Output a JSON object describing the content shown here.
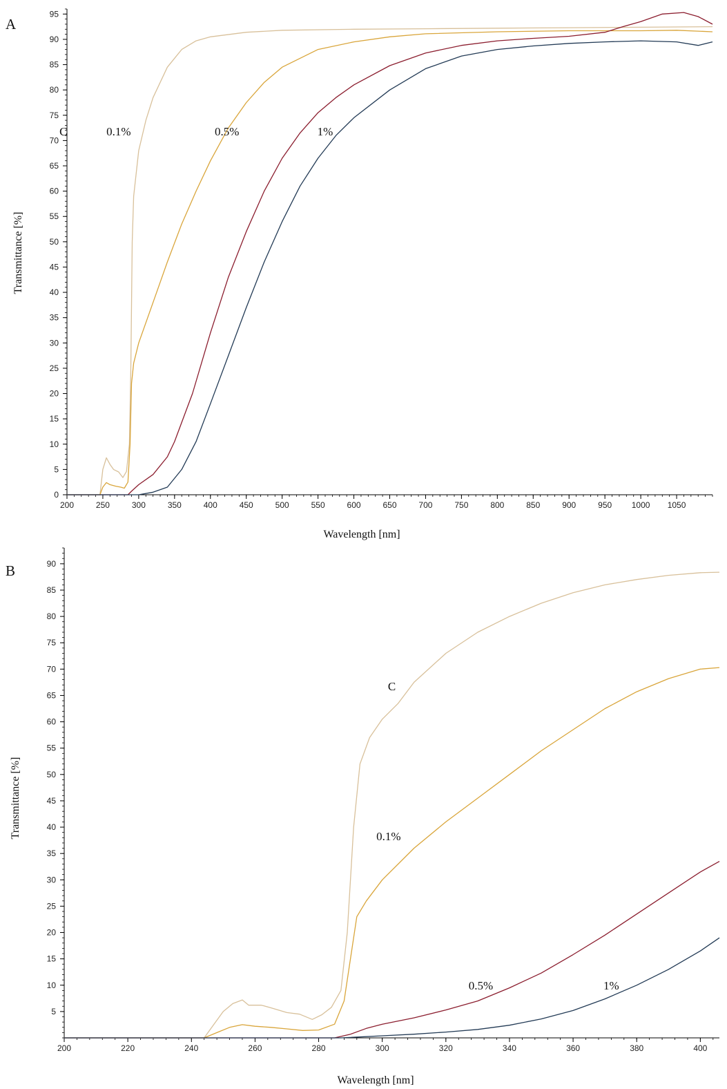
{
  "chart_data": [
    {
      "type": "line",
      "panel_label": "A",
      "xlabel": "Wavelength [nm]",
      "ylabel": "Transmittance [%]",
      "xlim": [
        200,
        1100
      ],
      "ylim": [
        0,
        96
      ],
      "xticks": [
        200,
        250,
        300,
        350,
        400,
        450,
        500,
        550,
        600,
        650,
        700,
        750,
        800,
        850,
        900,
        950,
        1000,
        1050
      ],
      "yticks": [
        0,
        5,
        10,
        15,
        20,
        25,
        30,
        35,
        40,
        45,
        50,
        55,
        60,
        65,
        70,
        75,
        80,
        85,
        90,
        95
      ],
      "grid": false,
      "series": [
        {
          "name": "C",
          "color": "#d8c09a",
          "label_at": {
            "x": 195,
            "y": 71
          },
          "points": [
            [
              200,
              0
            ],
            [
              240,
              0
            ],
            [
              246,
              0
            ],
            [
              250,
              5
            ],
            [
              255,
              7.3
            ],
            [
              260,
              6
            ],
            [
              265,
              5
            ],
            [
              272,
              4.5
            ],
            [
              278,
              3.4
            ],
            [
              283,
              4.6
            ],
            [
              287,
              10
            ],
            [
              289,
              25
            ],
            [
              291,
              50
            ],
            [
              293,
              59
            ],
            [
              300,
              68
            ],
            [
              310,
              74
            ],
            [
              320,
              78.5
            ],
            [
              340,
              84.5
            ],
            [
              360,
              88
            ],
            [
              380,
              89.7
            ],
            [
              400,
              90.5
            ],
            [
              450,
              91.4
            ],
            [
              500,
              91.8
            ],
            [
              600,
              92.0
            ],
            [
              700,
              92.1
            ],
            [
              800,
              92.2
            ],
            [
              900,
              92.3
            ],
            [
              1000,
              92.4
            ],
            [
              1100,
              92.5
            ]
          ]
        },
        {
          "name": "0.1%",
          "color": "#d9a53a",
          "label_at": {
            "x": 272,
            "y": 71
          },
          "points": [
            [
              200,
              0
            ],
            [
              240,
              0
            ],
            [
              246,
              0
            ],
            [
              250,
              1.5
            ],
            [
              255,
              2.4
            ],
            [
              260,
              2
            ],
            [
              268,
              1.7
            ],
            [
              275,
              1.5
            ],
            [
              280,
              1.3
            ],
            [
              285,
              2.5
            ],
            [
              288,
              10
            ],
            [
              290,
              22
            ],
            [
              293,
              26
            ],
            [
              300,
              30
            ],
            [
              320,
              38
            ],
            [
              340,
              46
            ],
            [
              360,
              53.5
            ],
            [
              380,
              60
            ],
            [
              400,
              66
            ],
            [
              425,
              72.5
            ],
            [
              450,
              77.5
            ],
            [
              475,
              81.5
            ],
            [
              500,
              84.5
            ],
            [
              550,
              88
            ],
            [
              600,
              89.5
            ],
            [
              650,
              90.5
            ],
            [
              700,
              91.1
            ],
            [
              800,
              91.5
            ],
            [
              900,
              91.7
            ],
            [
              1000,
              91.7
            ],
            [
              1050,
              91.8
            ],
            [
              1100,
              91.5
            ]
          ]
        },
        {
          "name": "0.5%",
          "color": "#8b1d2e",
          "label_at": {
            "x": 423,
            "y": 71
          },
          "points": [
            [
              200,
              0
            ],
            [
              240,
              0
            ],
            [
              285,
              0
            ],
            [
              290,
              0.7
            ],
            [
              300,
              2
            ],
            [
              320,
              4
            ],
            [
              340,
              7.5
            ],
            [
              350,
              10.5
            ],
            [
              375,
              20
            ],
            [
              400,
              32
            ],
            [
              425,
              43
            ],
            [
              450,
              52
            ],
            [
              475,
              60
            ],
            [
              500,
              66.5
            ],
            [
              525,
              71.5
            ],
            [
              550,
              75.5
            ],
            [
              575,
              78.5
            ],
            [
              600,
              81
            ],
            [
              650,
              84.8
            ],
            [
              700,
              87.3
            ],
            [
              750,
              88.8
            ],
            [
              800,
              89.7
            ],
            [
              850,
              90.2
            ],
            [
              900,
              90.6
            ],
            [
              950,
              91.4
            ],
            [
              975,
              92.5
            ],
            [
              1000,
              93.5
            ],
            [
              1030,
              95
            ],
            [
              1060,
              95.3
            ],
            [
              1080,
              94.5
            ],
            [
              1100,
              93
            ]
          ]
        },
        {
          "name": "1%",
          "color": "#223a55",
          "label_at": {
            "x": 560,
            "y": 71
          },
          "points": [
            [
              200,
              0
            ],
            [
              240,
              0
            ],
            [
              300,
              0
            ],
            [
              320,
              0.5
            ],
            [
              340,
              1.5
            ],
            [
              360,
              5
            ],
            [
              380,
              10.5
            ],
            [
              400,
              18
            ],
            [
              425,
              27.5
            ],
            [
              450,
              37
            ],
            [
              475,
              46
            ],
            [
              500,
              54
            ],
            [
              525,
              61
            ],
            [
              550,
              66.5
            ],
            [
              575,
              71
            ],
            [
              600,
              74.5
            ],
            [
              650,
              80
            ],
            [
              700,
              84.2
            ],
            [
              750,
              86.7
            ],
            [
              800,
              88
            ],
            [
              850,
              88.7
            ],
            [
              900,
              89.2
            ],
            [
              950,
              89.5
            ],
            [
              1000,
              89.7
            ],
            [
              1050,
              89.5
            ],
            [
              1080,
              88.8
            ],
            [
              1100,
              89.5
            ]
          ]
        }
      ]
    },
    {
      "type": "line",
      "panel_label": "B",
      "xlabel": "Wavelength [nm]",
      "ylabel": "Transmittance [%]",
      "xlim": [
        200,
        406
      ],
      "ylim": [
        0,
        93
      ],
      "xticks": [
        200,
        220,
        240,
        260,
        280,
        300,
        320,
        340,
        360,
        380,
        400
      ],
      "yticks": [
        5,
        10,
        15,
        20,
        25,
        30,
        35,
        40,
        45,
        50,
        55,
        60,
        65,
        70,
        75,
        80,
        85,
        90
      ],
      "grid": false,
      "series": [
        {
          "name": "C",
          "color": "#d8c09a",
          "label_at": {
            "x": 303,
            "y": 66
          },
          "points": [
            [
              200,
              0
            ],
            [
              244,
              0
            ],
            [
              247,
              2.5
            ],
            [
              250,
              5
            ],
            [
              253,
              6.5
            ],
            [
              256,
              7.2
            ],
            [
              258,
              6.2
            ],
            [
              262,
              6.2
            ],
            [
              265,
              5.7
            ],
            [
              270,
              4.8
            ],
            [
              274,
              4.5
            ],
            [
              278,
              3.5
            ],
            [
              281,
              4.4
            ],
            [
              284,
              5.8
            ],
            [
              287,
              9
            ],
            [
              289,
              20
            ],
            [
              291,
              40
            ],
            [
              293,
              52
            ],
            [
              296,
              57
            ],
            [
              300,
              60.5
            ],
            [
              305,
              63.5
            ],
            [
              310,
              67.5
            ],
            [
              320,
              73
            ],
            [
              330,
              77
            ],
            [
              340,
              80
            ],
            [
              350,
              82.5
            ],
            [
              360,
              84.5
            ],
            [
              370,
              86
            ],
            [
              380,
              87
            ],
            [
              390,
              87.8
            ],
            [
              400,
              88.3
            ],
            [
              406,
              88.4
            ]
          ]
        },
        {
          "name": "0.1%",
          "color": "#d9a53a",
          "label_at": {
            "x": 302,
            "y": 37.5
          },
          "points": [
            [
              200,
              0
            ],
            [
              244,
              0
            ],
            [
              248,
              1
            ],
            [
              252,
              2
            ],
            [
              256,
              2.5
            ],
            [
              260,
              2.2
            ],
            [
              265,
              2
            ],
            [
              270,
              1.7
            ],
            [
              275,
              1.4
            ],
            [
              280,
              1.5
            ],
            [
              285,
              2.6
            ],
            [
              288,
              7
            ],
            [
              290,
              15
            ],
            [
              292,
              23
            ],
            [
              295,
              26
            ],
            [
              300,
              30
            ],
            [
              310,
              36
            ],
            [
              320,
              41
            ],
            [
              330,
              45.5
            ],
            [
              340,
              50
            ],
            [
              350,
              54.5
            ],
            [
              360,
              58.5
            ],
            [
              370,
              62.5
            ],
            [
              380,
              65.7
            ],
            [
              390,
              68.2
            ],
            [
              400,
              70
            ],
            [
              406,
              70.3
            ]
          ]
        },
        {
          "name": "0.5%",
          "color": "#8b1d2e",
          "label_at": {
            "x": 331,
            "y": 9.2
          },
          "points": [
            [
              200,
              0
            ],
            [
              285,
              0
            ],
            [
              290,
              0.7
            ],
            [
              295,
              1.8
            ],
            [
              300,
              2.6
            ],
            [
              310,
              3.8
            ],
            [
              320,
              5.3
            ],
            [
              330,
              7
            ],
            [
              340,
              9.5
            ],
            [
              350,
              12.3
            ],
            [
              360,
              15.8
            ],
            [
              370,
              19.5
            ],
            [
              380,
              23.5
            ],
            [
              390,
              27.5
            ],
            [
              400,
              31.5
            ],
            [
              406,
              33.5
            ]
          ]
        },
        {
          "name": "1%",
          "color": "#223a55",
          "label_at": {
            "x": 372,
            "y": 9.2
          },
          "points": [
            [
              200,
              0
            ],
            [
              287,
              0
            ],
            [
              300,
              0.4
            ],
            [
              310,
              0.7
            ],
            [
              320,
              1.1
            ],
            [
              330,
              1.6
            ],
            [
              340,
              2.4
            ],
            [
              350,
              3.6
            ],
            [
              360,
              5.2
            ],
            [
              370,
              7.4
            ],
            [
              380,
              10
            ],
            [
              390,
              13
            ],
            [
              400,
              16.5
            ],
            [
              406,
              19
            ]
          ]
        }
      ]
    }
  ]
}
